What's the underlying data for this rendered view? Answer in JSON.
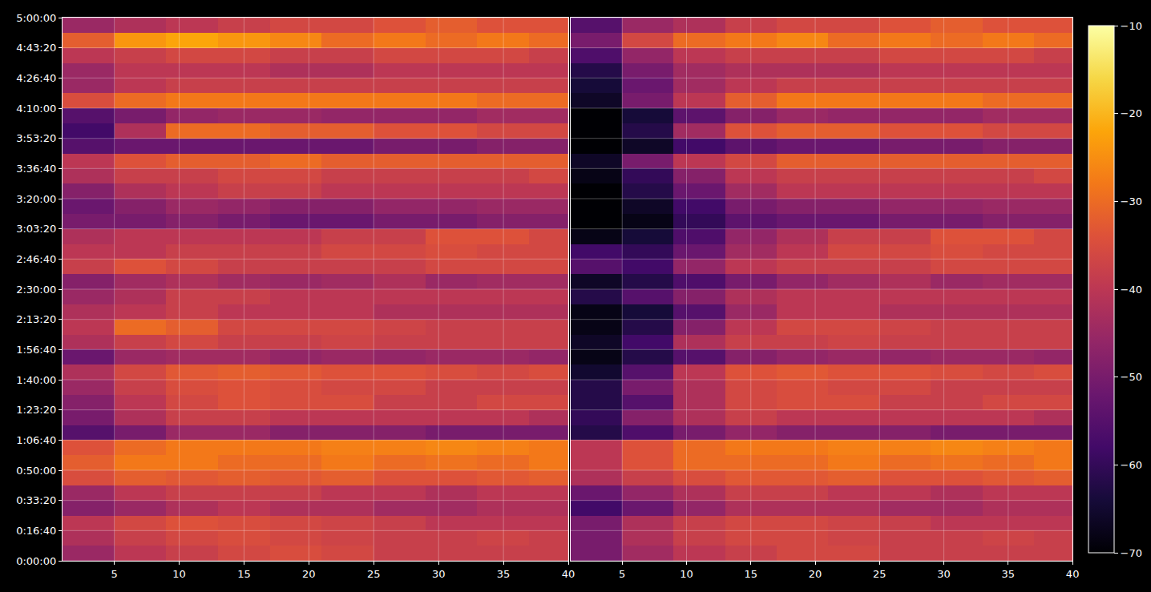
{
  "chart_data": [
    {
      "type": "heatmap",
      "grid": true,
      "tick_labels": true,
      "xlim": [
        1,
        40
      ],
      "xticks": [
        5,
        10,
        15,
        20,
        25,
        30,
        35,
        40
      ],
      "ylim": [
        0,
        18000
      ],
      "yticks": [
        {
          "value": 0,
          "label": "0:00:00"
        },
        {
          "value": 1000,
          "label": "0:16:40"
        },
        {
          "value": 2000,
          "label": "0:33:20"
        },
        {
          "value": 3000,
          "label": "0:50:00"
        },
        {
          "value": 4000,
          "label": "1:06:40"
        },
        {
          "value": 5000,
          "label": "1:23:20"
        },
        {
          "value": 6000,
          "label": "1:40:00"
        },
        {
          "value": 7000,
          "label": "1:56:40"
        },
        {
          "value": 8000,
          "label": "2:13:20"
        },
        {
          "value": 9000,
          "label": "2:30:00"
        },
        {
          "value": 10000,
          "label": "2:46:40"
        },
        {
          "value": 11000,
          "label": "3:03:20"
        },
        {
          "value": 12000,
          "label": "3:20:00"
        },
        {
          "value": 13000,
          "label": "3:36:40"
        },
        {
          "value": 14000,
          "label": "3:53:20"
        },
        {
          "value": 15000,
          "label": "4:10:00"
        },
        {
          "value": 16000,
          "label": "4:26:40"
        },
        {
          "value": 17000,
          "label": "4:43:20"
        },
        {
          "value": 18000,
          "label": "5:00:00"
        }
      ],
      "zlim": [
        -70,
        -10
      ],
      "x": [
        3,
        7,
        11,
        15,
        19,
        23,
        27,
        31,
        35,
        39
      ],
      "y": [
        250,
        750,
        1250,
        1750,
        2250,
        2750,
        3250,
        3750,
        4250,
        4750,
        5250,
        5750,
        6250,
        6750,
        7250,
        7750,
        8250,
        8750,
        9250,
        9750,
        10250,
        10750,
        11250,
        11750,
        12250,
        12750,
        13250,
        13750,
        14250,
        14750,
        15250,
        15750,
        16250,
        16750,
        17250,
        17750
      ],
      "z": [
        [
          -45,
          -40,
          -38,
          -36,
          -35,
          -36,
          -38,
          -38,
          -38,
          -38
        ],
        [
          -42,
          -38,
          -36,
          -35,
          -36,
          -37,
          -38,
          -38,
          -37,
          -38
        ],
        [
          -40,
          -36,
          -34,
          -35,
          -36,
          -37,
          -38,
          -40,
          -40,
          -40
        ],
        [
          -48,
          -45,
          -42,
          -40,
          -42,
          -42,
          -44,
          -44,
          -42,
          -42
        ],
        [
          -45,
          -40,
          -38,
          -38,
          -38,
          -40,
          -40,
          -42,
          -40,
          -40
        ],
        [
          -35,
          -32,
          -33,
          -32,
          -33,
          -32,
          -34,
          -34,
          -33,
          -32
        ],
        [
          -32,
          -28,
          -28,
          -30,
          -30,
          -28,
          -30,
          -29,
          -30,
          -28
        ],
        [
          -34,
          -30,
          -28,
          -28,
          -28,
          -27,
          -27,
          -26,
          -27,
          -28
        ],
        [
          -55,
          -50,
          -45,
          -45,
          -48,
          -48,
          -48,
          -50,
          -50,
          -50
        ],
        [
          -50,
          -42,
          -38,
          -38,
          -40,
          -40,
          -40,
          -40,
          -40,
          -42
        ],
        [
          -48,
          -40,
          -36,
          -34,
          -35,
          -35,
          -38,
          -38,
          -36,
          -36
        ],
        [
          -45,
          -38,
          -35,
          -34,
          -35,
          -36,
          -36,
          -38,
          -38,
          -38
        ],
        [
          -42,
          -36,
          -33,
          -32,
          -33,
          -34,
          -34,
          -35,
          -36,
          -35
        ],
        [
          -52,
          -45,
          -44,
          -44,
          -46,
          -45,
          -46,
          -45,
          -45,
          -46
        ],
        [
          -42,
          -38,
          -36,
          -38,
          -38,
          -37,
          -38,
          -38,
          -38,
          -38
        ],
        [
          -40,
          -30,
          -32,
          -36,
          -36,
          -36,
          -37,
          -38,
          -38,
          -38
        ],
        [
          -42,
          -40,
          -38,
          -40,
          -40,
          -40,
          -42,
          -42,
          -42,
          -42
        ],
        [
          -45,
          -42,
          -38,
          -38,
          -40,
          -40,
          -40,
          -40,
          -40,
          -40
        ],
        [
          -48,
          -44,
          -42,
          -44,
          -45,
          -44,
          -42,
          -45,
          -44,
          -44
        ],
        [
          -38,
          -34,
          -36,
          -38,
          -38,
          -38,
          -38,
          -36,
          -36,
          -36
        ],
        [
          -40,
          -40,
          -38,
          -38,
          -38,
          -36,
          -36,
          -35,
          -36,
          -36
        ],
        [
          -42,
          -40,
          -40,
          -40,
          -40,
          -38,
          -38,
          -34,
          -34,
          -36
        ],
        [
          -50,
          -50,
          -48,
          -50,
          -52,
          -52,
          -50,
          -50,
          -48,
          -48
        ],
        [
          -52,
          -48,
          -45,
          -46,
          -48,
          -48,
          -46,
          -46,
          -45,
          -45
        ],
        [
          -48,
          -42,
          -40,
          -38,
          -38,
          -40,
          -40,
          -40,
          -40,
          -40
        ],
        [
          -42,
          -38,
          -38,
          -36,
          -36,
          -38,
          -38,
          -38,
          -38,
          -36
        ],
        [
          -40,
          -34,
          -32,
          -32,
          -30,
          -32,
          -32,
          -32,
          -32,
          -32
        ],
        [
          -55,
          -52,
          -52,
          -52,
          -52,
          -52,
          -50,
          -50,
          -48,
          -48
        ],
        [
          -58,
          -42,
          -30,
          -30,
          -32,
          -32,
          -34,
          -34,
          -36,
          -36
        ],
        [
          -55,
          -50,
          -46,
          -45,
          -45,
          -46,
          -46,
          -46,
          -44,
          -44
        ],
        [
          -35,
          -30,
          -28,
          -28,
          -28,
          -28,
          -28,
          -28,
          -30,
          -30
        ],
        [
          -45,
          -40,
          -38,
          -38,
          -38,
          -38,
          -38,
          -38,
          -38,
          -38
        ],
        [
          -45,
          -40,
          -40,
          -40,
          -42,
          -42,
          -40,
          -40,
          -40,
          -40
        ],
        [
          -40,
          -38,
          -36,
          -36,
          -38,
          -38,
          -36,
          -36,
          -36,
          -38
        ],
        [
          -32,
          -24,
          -22,
          -24,
          -26,
          -30,
          -28,
          -30,
          -28,
          -30
        ],
        [
          -45,
          -42,
          -40,
          -38,
          -36,
          -36,
          -34,
          -32,
          -34,
          -34
        ]
      ]
    },
    {
      "type": "heatmap",
      "grid": true,
      "tick_labels": "x",
      "xlim": [
        1,
        40
      ],
      "xticks": [
        5,
        10,
        15,
        20,
        25,
        30,
        35,
        40
      ],
      "ylim": [
        0,
        18000
      ],
      "yticks": [
        0,
        1000,
        2000,
        3000,
        4000,
        5000,
        6000,
        7000,
        8000,
        9000,
        10000,
        11000,
        12000,
        13000,
        14000,
        15000,
        16000,
        17000,
        18000
      ],
      "zlim": [
        -70,
        -10
      ],
      "colorbar": {
        "ticks": [
          {
            "value": -70,
            "label": "−70"
          },
          {
            "value": -60,
            "label": "−60"
          },
          {
            "value": -50,
            "label": "−50"
          },
          {
            "value": -40,
            "label": "−40"
          },
          {
            "value": -30,
            "label": "−30"
          },
          {
            "value": -20,
            "label": "−20"
          },
          {
            "value": -10,
            "label": "−10"
          }
        ]
      },
      "x": [
        3,
        7,
        11,
        15,
        19,
        23,
        27,
        31,
        35,
        39
      ],
      "y": [
        250,
        750,
        1250,
        1750,
        2250,
        2750,
        3250,
        3750,
        4250,
        4750,
        5250,
        5750,
        6250,
        6750,
        7250,
        7750,
        8250,
        8750,
        9250,
        9750,
        10250,
        10750,
        11250,
        11750,
        12250,
        12750,
        13250,
        13750,
        14250,
        14750,
        15250,
        15750,
        16250,
        16750,
        17250,
        17750
      ],
      "z": [
        [
          -50,
          -44,
          -40,
          -38,
          -36,
          -36,
          -38,
          -38,
          -38,
          -38
        ],
        [
          -50,
          -42,
          -38,
          -36,
          -36,
          -37,
          -38,
          -38,
          -37,
          -38
        ],
        [
          -50,
          -42,
          -38,
          -36,
          -36,
          -37,
          -38,
          -40,
          -40,
          -40
        ],
        [
          -58,
          -52,
          -46,
          -42,
          -42,
          -42,
          -44,
          -44,
          -42,
          -42
        ],
        [
          -52,
          -46,
          -42,
          -38,
          -38,
          -40,
          -40,
          -42,
          -40,
          -40
        ],
        [
          -42,
          -38,
          -35,
          -33,
          -33,
          -32,
          -34,
          -34,
          -33,
          -32
        ],
        [
          -40,
          -34,
          -30,
          -30,
          -30,
          -28,
          -30,
          -29,
          -30,
          -28
        ],
        [
          -40,
          -34,
          -30,
          -28,
          -28,
          -27,
          -27,
          -26,
          -27,
          -28
        ],
        [
          -62,
          -56,
          -50,
          -46,
          -48,
          -48,
          -48,
          -50,
          -50,
          -50
        ],
        [
          -60,
          -48,
          -42,
          -38,
          -40,
          -40,
          -40,
          -40,
          -40,
          -42
        ],
        [
          -62,
          -55,
          -42,
          -36,
          -35,
          -35,
          -38,
          -38,
          -36,
          -36
        ],
        [
          -62,
          -50,
          -42,
          -36,
          -35,
          -36,
          -36,
          -38,
          -38,
          -38
        ],
        [
          -65,
          -55,
          -40,
          -34,
          -33,
          -34,
          -34,
          -35,
          -36,
          -35
        ],
        [
          -68,
          -62,
          -55,
          -48,
          -46,
          -45,
          -46,
          -45,
          -45,
          -46
        ],
        [
          -66,
          -58,
          -42,
          -38,
          -38,
          -37,
          -38,
          -38,
          -38,
          -38
        ],
        [
          -68,
          -62,
          -48,
          -40,
          -36,
          -36,
          -37,
          -38,
          -38,
          -38
        ],
        [
          -68,
          -64,
          -55,
          -45,
          -40,
          -40,
          -42,
          -42,
          -42,
          -42
        ],
        [
          -62,
          -55,
          -48,
          -42,
          -40,
          -40,
          -40,
          -40,
          -40,
          -40
        ],
        [
          -66,
          -62,
          -56,
          -50,
          -46,
          -44,
          -42,
          -45,
          -44,
          -44
        ],
        [
          -55,
          -58,
          -46,
          -40,
          -38,
          -38,
          -38,
          -36,
          -36,
          -36
        ],
        [
          -58,
          -60,
          -52,
          -44,
          -40,
          -36,
          -36,
          -35,
          -36,
          -36
        ],
        [
          -68,
          -64,
          -56,
          -46,
          -42,
          -38,
          -38,
          -34,
          -34,
          -36
        ],
        [
          -70,
          -68,
          -60,
          -54,
          -52,
          -52,
          -50,
          -50,
          -48,
          -48
        ],
        [
          -70,
          -66,
          -58,
          -50,
          -48,
          -48,
          -46,
          -46,
          -45,
          -45
        ],
        [
          -70,
          -62,
          -52,
          -44,
          -40,
          -40,
          -40,
          -40,
          -40,
          -40
        ],
        [
          -68,
          -60,
          -48,
          -40,
          -38,
          -38,
          -38,
          -38,
          -38,
          -36
        ],
        [
          -66,
          -50,
          -40,
          -36,
          -32,
          -32,
          -32,
          -32,
          -32,
          -32
        ],
        [
          -70,
          -66,
          -58,
          -54,
          -52,
          -52,
          -50,
          -50,
          -48,
          -48
        ],
        [
          -70,
          -62,
          -44,
          -34,
          -32,
          -32,
          -34,
          -34,
          -36,
          -36
        ],
        [
          -70,
          -64,
          -54,
          -48,
          -45,
          -46,
          -46,
          -46,
          -44,
          -44
        ],
        [
          -66,
          -50,
          -40,
          -32,
          -28,
          -28,
          -28,
          -28,
          -30,
          -30
        ],
        [
          -64,
          -52,
          -44,
          -40,
          -38,
          -38,
          -38,
          -38,
          -38,
          -38
        ],
        [
          -62,
          -50,
          -44,
          -42,
          -42,
          -42,
          -40,
          -40,
          -40,
          -40
        ],
        [
          -56,
          -46,
          -40,
          -38,
          -38,
          -38,
          -36,
          -36,
          -36,
          -38
        ],
        [
          -50,
          -36,
          -30,
          -28,
          -26,
          -30,
          -28,
          -30,
          -28,
          -30
        ],
        [
          -55,
          -45,
          -42,
          -38,
          -36,
          -36,
          -34,
          -32,
          -34,
          -34
        ]
      ]
    }
  ]
}
